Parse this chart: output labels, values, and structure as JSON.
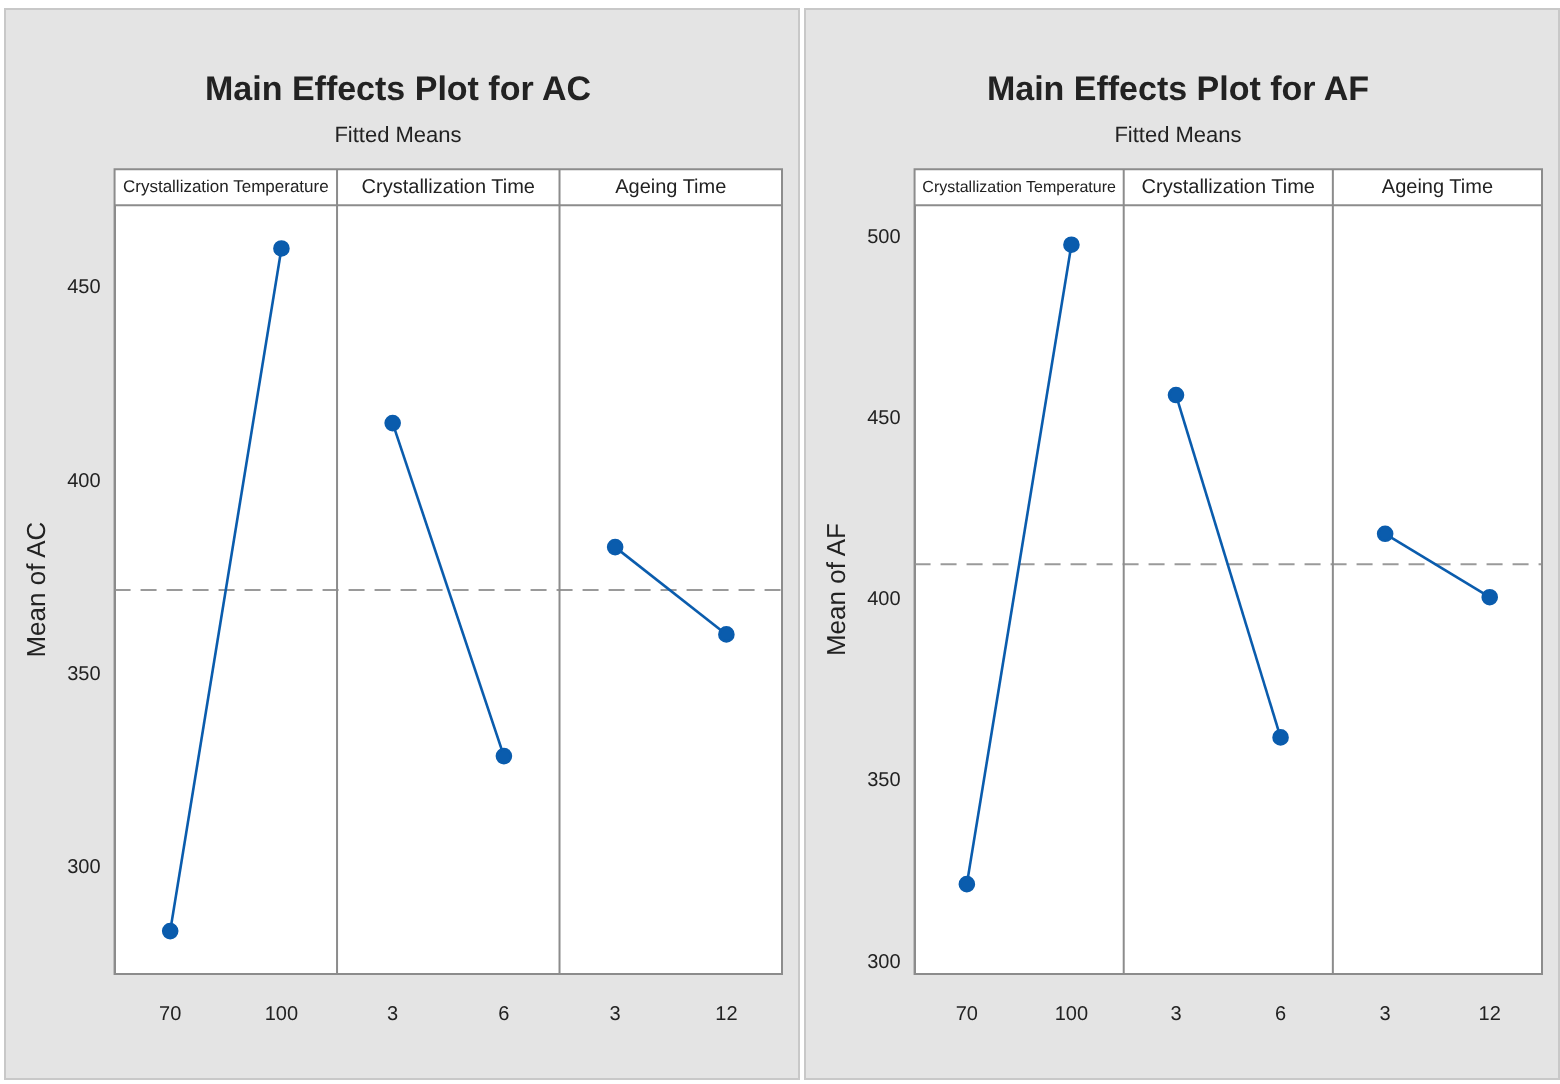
{
  "chart_data": [
    {
      "type": "line",
      "title": "Main Effects Plot for AC",
      "subtitle": "Fitted Means",
      "ylabel": "Mean of AC",
      "categories": [
        "70",
        "100",
        "3",
        "6",
        "3",
        "12"
      ],
      "annotations": [
        "Crystallization Temperature",
        "Crystallization Time",
        "Ageing Time"
      ],
      "series": [
        {
          "color": "#0a5cad",
          "values": [
            283.5,
            460.2,
            null,
            null,
            null,
            null
          ]
        },
        {
          "color": "#0a5cad",
          "values": [
            null,
            null,
            415,
            328.8,
            null,
            null
          ]
        },
        {
          "color": "#0a5cad",
          "values": [
            null,
            null,
            null,
            null,
            382.9,
            360.3
          ]
        }
      ],
      "ylim": [
        272.4,
        471.4
      ],
      "yticks": [
        300,
        350,
        400,
        450
      ],
      "marker": "circle",
      "grid": false,
      "legend": false,
      "ref_lines": [
        {
          "axis": "y",
          "value": 371.8,
          "line_style": "dashed",
          "color": "#9a9a9a"
        }
      ]
    },
    {
      "type": "line",
      "title": "Main Effects Plot for AF",
      "subtitle": "Fitted Means",
      "ylabel": "Mean of AF",
      "categories": [
        "70",
        "100",
        "3",
        "6",
        "3",
        "12"
      ],
      "annotations": [
        "Crystallization Temperature",
        "Crystallization Time",
        "Ageing Time"
      ],
      "series": [
        {
          "color": "#0a5cad",
          "values": [
            321.5,
            498,
            null,
            null,
            null,
            null
          ]
        },
        {
          "color": "#0a5cad",
          "values": [
            null,
            null,
            456.5,
            362,
            null,
            null
          ]
        },
        {
          "color": "#0a5cad",
          "values": [
            null,
            null,
            null,
            null,
            418.2,
            400.7
          ]
        }
      ],
      "ylim": [
        296.7,
        508.9
      ],
      "yticks": [
        300,
        350,
        400,
        450,
        500
      ],
      "marker": "circle",
      "grid": false,
      "legend": false,
      "ref_lines": [
        {
          "axis": "y",
          "value": 409.8,
          "line_style": "dashed",
          "color": "#9a9a9a"
        }
      ]
    }
  ]
}
